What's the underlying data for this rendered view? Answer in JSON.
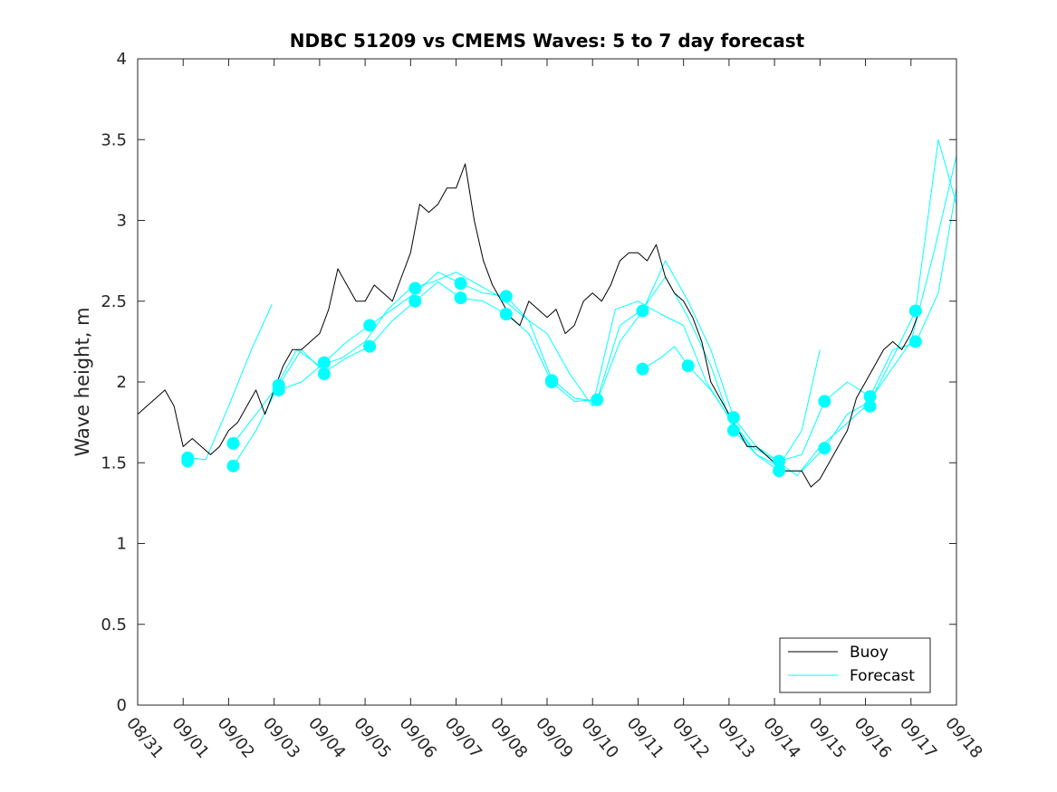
{
  "chart_data": {
    "type": "line",
    "title": "NDBC 51209 vs CMEMS Waves: 5 to 7 day forecast",
    "xlabel": "",
    "ylabel": "Wave height, m",
    "xlim": [
      0,
      18
    ],
    "ylim": [
      0,
      4
    ],
    "x_ticks": [
      0,
      1,
      2,
      3,
      4,
      5,
      6,
      7,
      8,
      9,
      10,
      11,
      12,
      13,
      14,
      15,
      16,
      17,
      18
    ],
    "x_tick_labels": [
      "08/31",
      "09/01",
      "09/02",
      "09/03",
      "09/04",
      "09/05",
      "09/06",
      "09/07",
      "09/08",
      "09/09",
      "09/10",
      "09/11",
      "09/12",
      "09/13",
      "09/14",
      "09/15",
      "09/16",
      "09/17",
      "09/18"
    ],
    "y_ticks": [
      0,
      0.5,
      1,
      1.5,
      2,
      2.5,
      3,
      3.5,
      4
    ],
    "y_tick_labels": [
      "0",
      "0.5",
      "1",
      "1.5",
      "2",
      "2.5",
      "3",
      "3.5",
      "4"
    ],
    "legend": {
      "location": "bottom-right",
      "entries": [
        "Buoy",
        "Forecast"
      ]
    },
    "colors": {
      "buoy": "#000000",
      "forecast": "#00ffff"
    },
    "series": [
      {
        "name": "Buoy",
        "color": "#000000",
        "x": [
          0.0,
          0.2,
          0.4,
          0.6,
          0.8,
          1.0,
          1.2,
          1.4,
          1.6,
          1.8,
          2.0,
          2.2,
          2.4,
          2.6,
          2.8,
          3.0,
          3.2,
          3.4,
          3.6,
          3.8,
          4.0,
          4.2,
          4.4,
          4.6,
          4.8,
          5.0,
          5.2,
          5.4,
          5.6,
          5.8,
          6.0,
          6.2,
          6.4,
          6.6,
          6.8,
          7.0,
          7.2,
          7.4,
          7.6,
          7.8,
          8.0,
          8.2,
          8.4,
          8.6,
          8.8,
          9.0,
          9.2,
          9.4,
          9.6,
          9.8,
          10.0,
          10.2,
          10.4,
          10.6,
          10.8,
          11.0,
          11.2,
          11.4,
          11.6,
          11.8,
          12.0,
          12.2,
          12.4,
          12.6,
          12.8,
          13.0,
          13.2,
          13.4,
          13.6,
          13.8,
          14.0,
          14.2,
          14.4,
          14.6,
          14.8,
          15.0,
          15.2,
          15.4,
          15.6,
          15.8,
          16.0,
          16.2,
          16.4,
          16.6,
          16.8,
          17.0,
          17.2
        ],
        "y": [
          1.8,
          1.85,
          1.9,
          1.95,
          1.85,
          1.6,
          1.65,
          1.6,
          1.55,
          1.6,
          1.7,
          1.75,
          1.85,
          1.95,
          1.8,
          1.95,
          2.1,
          2.2,
          2.2,
          2.25,
          2.3,
          2.45,
          2.7,
          2.6,
          2.5,
          2.5,
          2.6,
          2.55,
          2.5,
          2.65,
          2.8,
          3.1,
          3.05,
          3.1,
          3.2,
          3.2,
          3.35,
          3.0,
          2.75,
          2.6,
          2.5,
          2.4,
          2.35,
          2.5,
          2.45,
          2.4,
          2.45,
          2.3,
          2.35,
          2.5,
          2.55,
          2.5,
          2.6,
          2.75,
          2.8,
          2.8,
          2.75,
          2.85,
          2.65,
          2.55,
          2.5,
          2.4,
          2.25,
          2.0,
          1.9,
          1.8,
          1.7,
          1.6,
          1.6,
          1.55,
          1.5,
          1.45,
          1.45,
          1.45,
          1.35,
          1.4,
          1.5,
          1.6,
          1.7,
          1.9,
          2.0,
          2.1,
          2.2,
          2.25,
          2.2,
          2.3,
          2.45
        ]
      },
      {
        "name": "Forecast",
        "color": "#00ffff",
        "x": [
          1.1,
          1.5,
          2.0,
          2.5,
          2.95
        ],
        "y": [
          1.53,
          1.52,
          1.85,
          2.2,
          2.48
        ]
      },
      {
        "name": "Forecast",
        "color": "#00ffff",
        "x": [
          2.1,
          2.6,
          3.0,
          3.5,
          4.0,
          4.5,
          5.0,
          5.5,
          6.0,
          6.5,
          7.0,
          7.5,
          8.0,
          8.5,
          9.0,
          9.5,
          10.0,
          10.5,
          11.0,
          11.5,
          12.0,
          12.5,
          13.0,
          13.5,
          14.0,
          14.5,
          15.0,
          15.5,
          16.0,
          16.5,
          17.0,
          17.5,
          18.0
        ],
        "y": [
          1.62,
          1.8,
          1.95,
          2.2,
          2.1,
          2.15,
          2.25,
          2.45,
          2.58,
          2.62,
          2.68,
          2.6,
          2.52,
          2.4,
          2.3,
          2.05,
          1.85,
          2.45,
          2.5,
          2.42,
          2.35,
          2.0,
          1.78,
          1.6,
          1.52,
          1.42,
          1.6,
          1.72,
          1.85,
          2.05,
          2.25,
          2.8,
          3.4
        ]
      },
      {
        "name": "Forecast",
        "color": "#00ffff",
        "x": [
          2.1,
          2.6,
          3.1,
          3.6,
          4.1,
          4.6,
          5.1,
          5.6,
          6.1,
          6.6,
          7.1,
          7.6,
          8.1,
          8.6,
          9.1,
          9.6,
          10.1,
          10.6,
          11.1,
          11.6,
          12.1,
          12.6,
          13.1,
          13.6,
          14.1,
          14.6,
          15.1,
          15.6,
          16.1,
          16.6,
          17.1,
          17.6,
          18.0
        ],
        "y": [
          1.48,
          1.7,
          1.98,
          2.2,
          2.06,
          2.15,
          2.22,
          2.38,
          2.5,
          2.62,
          2.52,
          2.5,
          2.42,
          2.3,
          2.0,
          1.88,
          1.89,
          2.35,
          2.45,
          2.65,
          2.4,
          2.1,
          1.7,
          1.55,
          1.45,
          1.45,
          1.59,
          1.8,
          1.88,
          2.15,
          2.44,
          3.5,
          3.1
        ]
      },
      {
        "name": "Forecast",
        "color": "#00ffff",
        "x": [
          3.1,
          3.6,
          4.1,
          4.6,
          5.1,
          5.6,
          6.1,
          6.6,
          7.1,
          7.6,
          8.1,
          8.6,
          9.1,
          9.6,
          10.1,
          10.6,
          11.1,
          11.6,
          12.1,
          12.6,
          13.1,
          13.6,
          14.1,
          14.6,
          15.1,
          15.6,
          16.1,
          16.6,
          17.1,
          17.6,
          18.0
        ],
        "y": [
          1.95,
          2.0,
          2.12,
          2.25,
          2.35,
          2.45,
          2.55,
          2.68,
          2.61,
          2.55,
          2.53,
          2.38,
          2.02,
          1.9,
          1.88,
          2.25,
          2.44,
          2.75,
          2.5,
          2.2,
          1.78,
          1.6,
          1.51,
          1.55,
          1.88,
          2.0,
          1.91,
          2.2,
          2.24,
          2.55,
          3.2
        ]
      },
      {
        "name": "Forecast",
        "color": "#00ffff",
        "x": [
          11.1,
          11.5,
          11.8,
          12.1,
          12.6,
          13.1,
          13.6,
          14.1,
          14.6,
          15.0
        ],
        "y": [
          2.08,
          2.15,
          2.22,
          2.1,
          1.95,
          1.74,
          1.55,
          1.48,
          1.7,
          2.2
        ]
      }
    ],
    "markers": {
      "x": [
        1.1,
        1.1,
        2.1,
        2.1,
        3.1,
        3.1,
        4.1,
        4.1,
        5.1,
        5.1,
        6.1,
        6.1,
        7.1,
        7.1,
        8.1,
        8.1,
        9.1,
        9.1,
        10.1,
        11.1,
        11.1,
        12.1,
        13.1,
        13.1,
        14.1,
        14.1,
        15.1,
        15.1,
        16.1,
        16.1,
        17.1,
        17.1
      ],
      "y": [
        1.51,
        1.53,
        1.48,
        1.62,
        1.95,
        1.98,
        2.05,
        2.12,
        2.22,
        2.35,
        2.5,
        2.58,
        2.52,
        2.61,
        2.42,
        2.53,
        2.0,
        2.01,
        1.89,
        2.08,
        2.44,
        2.1,
        1.7,
        1.78,
        1.45,
        1.51,
        1.59,
        1.88,
        1.85,
        1.91,
        2.25,
        2.44
      ]
    }
  }
}
